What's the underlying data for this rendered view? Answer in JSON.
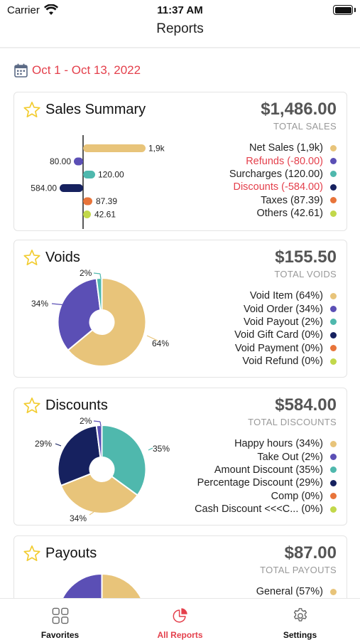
{
  "status_bar": {
    "carrier": "Carrier",
    "time": "11:37 AM"
  },
  "nav": {
    "title": "Reports"
  },
  "date_range": {
    "text": "Oct 1 - Oct 13, 2022",
    "color": "#e4404c"
  },
  "cards": {
    "sales_summary": {
      "title": "Sales Summary",
      "total": "$1,486.00",
      "total_label": "TOTAL SALES",
      "bar_labels": [
        "1,9k",
        "80.00",
        "120.00",
        "584.00",
        "87.39",
        "42.61"
      ],
      "legend": [
        {
          "label": "Net Sales (1,9k)",
          "color": "#e8c47a",
          "highlight": false
        },
        {
          "label": "Refunds (-80.00)",
          "color": "#5b4fb5",
          "highlight": true
        },
        {
          "label": "Surcharges (120.00)",
          "color": "#4fb8ad",
          "highlight": false
        },
        {
          "label": "Discounts (-584.00)",
          "color": "#16215f",
          "highlight": true
        },
        {
          "label": "Taxes (87.39)",
          "color": "#e8743a",
          "highlight": false
        },
        {
          "label": "Others (42.61)",
          "color": "#c2d84a",
          "highlight": false
        }
      ]
    },
    "voids": {
      "title": "Voids",
      "total": "$155.50",
      "total_label": "TOTAL VOIDS",
      "pie": {
        "values": [
          64,
          34,
          2
        ],
        "labels": [
          "64%",
          "34%",
          "2%"
        ],
        "colors": [
          "#e8c47a",
          "#5b4fb5",
          "#4fb8ad"
        ]
      },
      "legend": [
        {
          "label": "Void Item (64%)",
          "color": "#e8c47a"
        },
        {
          "label": "Void Order (34%)",
          "color": "#5b4fb5"
        },
        {
          "label": "Void Payout (2%)",
          "color": "#4fb8ad"
        },
        {
          "label": "Void Gift Card (0%)",
          "color": "#16215f"
        },
        {
          "label": "Void Payment (0%)",
          "color": "#e8743a"
        },
        {
          "label": "Void Refund (0%)",
          "color": "#c2d84a"
        }
      ]
    },
    "discounts": {
      "title": "Discounts",
      "total": "$584.00",
      "total_label": "TOTAL DISCOUNTS",
      "pie": {
        "values": [
          35,
          34,
          29,
          2
        ],
        "labels": [
          "35%",
          "34%",
          "29%",
          "2%"
        ],
        "colors": [
          "#4fb8ad",
          "#e8c47a",
          "#16215f",
          "#5b4fb5"
        ]
      },
      "legend": [
        {
          "label": "Happy hours (34%)",
          "color": "#e8c47a"
        },
        {
          "label": "Take Out (2%)",
          "color": "#5b4fb5"
        },
        {
          "label": "Amount Discount (35%)",
          "color": "#4fb8ad"
        },
        {
          "label": "Percentage Discount (29%)",
          "color": "#16215f"
        },
        {
          "label": "Comp (0%)",
          "color": "#e8743a"
        },
        {
          "label": "Cash Discount <<<C... (0%)",
          "color": "#c2d84a"
        }
      ]
    },
    "payouts": {
      "title": "Payouts",
      "total": "$87.00",
      "total_label": "TOTAL PAYOUTS",
      "pie": {
        "values": [
          57,
          43
        ],
        "colors": [
          "#e8c47a",
          "#5b4fb5"
        ]
      },
      "legend": [
        {
          "label": "General (57%)",
          "color": "#e8c47a"
        }
      ]
    }
  },
  "tabs": [
    {
      "label": "Favorites",
      "icon": "grid-icon",
      "active": false
    },
    {
      "label": "All Reports",
      "icon": "pie-chart-icon",
      "active": true
    },
    {
      "label": "Settings",
      "icon": "gear-icon",
      "active": false
    }
  ],
  "colors": {
    "accent": "#e4404c",
    "star": "#f2cc2f"
  }
}
